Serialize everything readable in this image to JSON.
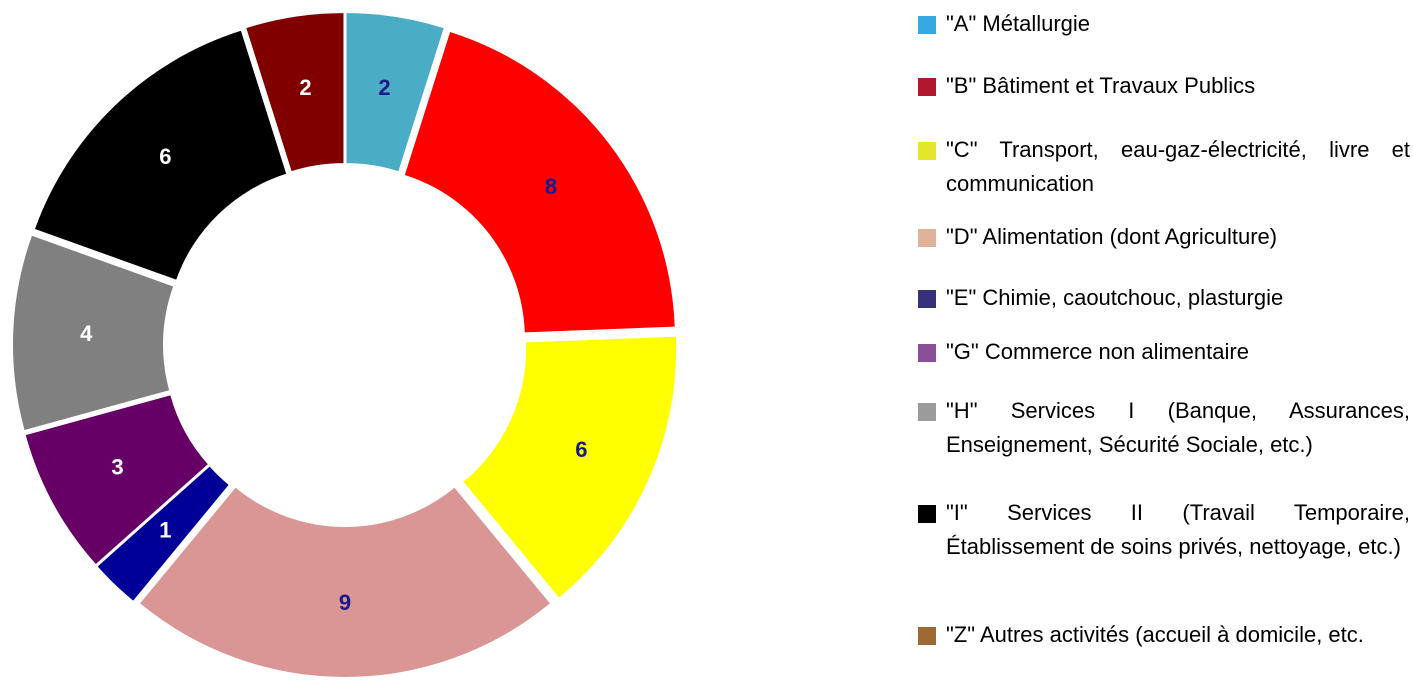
{
  "chart_data": {
    "type": "donut",
    "categories": [
      "\"A\" Métallurgie",
      "\"B\" Bâtiment et Travaux Publics",
      "\"C\" Transport, eau-gaz-électricité, livre et communication",
      "\"D\" Alimentation (dont Agriculture)",
      "\"E\" Chimie, caoutchouc, plasturgie",
      "\"G\" Commerce non alimentaire",
      "\"H\" Services I (Banque, Assurances, Enseignement, Sécurité Sociale, etc.)",
      "\"I\" Services II (Travail Temporaire, Établissement de soins privés, nettoyage, etc.)",
      "\"Z\" Autres activités (accueil à domicile, etc."
    ],
    "values": [
      2,
      8,
      6,
      9,
      1,
      3,
      4,
      6,
      2
    ],
    "colors": [
      "#4bacc6",
      "#ff0000",
      "#ffff00",
      "#d99694",
      "#000099",
      "#660066",
      "#808080",
      "#000000",
      "#800000"
    ],
    "label_colors": [
      "#1a1a8c",
      "#1a1a8c",
      "#1a1a8c",
      "#1a1a8c",
      "#ffffff",
      "#ffffff",
      "#ffffff",
      "#ffffff",
      "#ffffff"
    ],
    "legend_colors": [
      "#36a9e1",
      "#b0182f",
      "#e3e62b",
      "#deb39a",
      "#37307b",
      "#8b4f9a",
      "#9b9b9b",
      "#000000",
      "#9c6a32"
    ]
  }
}
